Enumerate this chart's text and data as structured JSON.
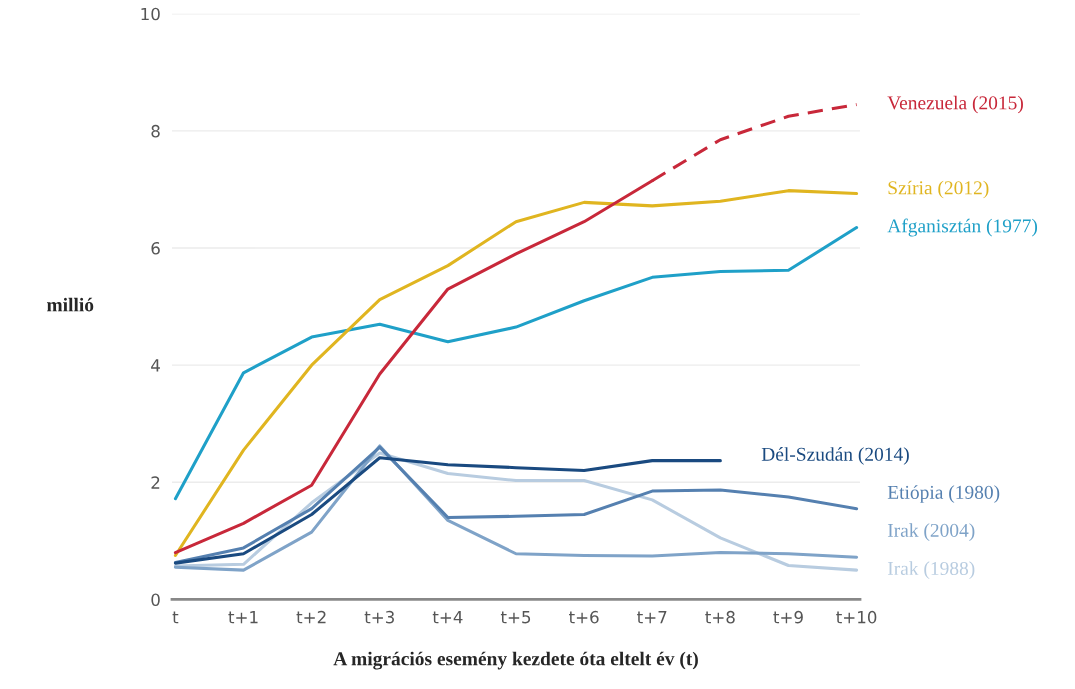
{
  "chart_data": {
    "type": "line",
    "xlabel": "A migrációs esemény kezdete óta eltelt év (t)",
    "ylabel": "millió",
    "categories": [
      "t",
      "t+1",
      "t+2",
      "t+3",
      "t+4",
      "t+5",
      "t+6",
      "t+7",
      "t+8",
      "t+9",
      "t+10"
    ],
    "ylim": [
      0,
      10
    ],
    "yticks": [
      0,
      2,
      4,
      6,
      8,
      10
    ],
    "grid": "y",
    "legend": false,
    "marker": "none",
    "series": [
      {
        "color": "#c8283a",
        "line_style": "solid",
        "values": [
          0.8,
          1.3,
          1.95,
          3.85,
          5.3,
          5.9,
          6.45,
          7.15,
          null,
          null,
          null
        ]
      },
      {
        "name": "Venezuela (2015)",
        "color": "#c8283a",
        "line_style": "dashed",
        "values": [
          null,
          null,
          null,
          null,
          null,
          null,
          null,
          7.15,
          7.85,
          8.25,
          8.45
        ]
      },
      {
        "name": "Szíria (2012)",
        "color": "#e0b520",
        "line_style": "solid",
        "values": [
          0.75,
          2.55,
          4.0,
          5.12,
          5.7,
          6.45,
          6.78,
          6.72,
          6.8,
          6.98,
          6.93
        ]
      },
      {
        "name": "Afganisztán (1977)",
        "color": "#1fa0c8",
        "line_style": "solid",
        "values": [
          1.72,
          3.87,
          4.48,
          4.7,
          4.4,
          4.65,
          5.1,
          5.5,
          5.6,
          5.62,
          6.35
        ]
      },
      {
        "name": "Dél-Szudán (2014)",
        "color": "#1a4a80",
        "line_style": "solid",
        "values": [
          0.62,
          0.78,
          1.45,
          2.42,
          2.3,
          2.25,
          2.2,
          2.37,
          2.37,
          null,
          null
        ]
      },
      {
        "name": "Etiópia (1980)",
        "color": "#5580b0",
        "line_style": "solid",
        "values": [
          0.63,
          0.88,
          1.55,
          2.6,
          1.4,
          1.42,
          1.45,
          1.85,
          1.87,
          1.75,
          1.55
        ]
      },
      {
        "name": "Irak (2004)",
        "color": "#7fa3c8",
        "line_style": "solid",
        "values": [
          0.55,
          0.5,
          1.15,
          2.62,
          1.35,
          0.78,
          0.75,
          0.74,
          0.8,
          0.78,
          0.72
        ]
      },
      {
        "name": "Irak (1988)",
        "color": "#b8cce0",
        "line_style": "solid",
        "values": [
          0.57,
          0.6,
          1.65,
          2.5,
          2.15,
          2.03,
          2.03,
          1.7,
          1.05,
          0.58,
          0.5
        ]
      }
    ]
  }
}
